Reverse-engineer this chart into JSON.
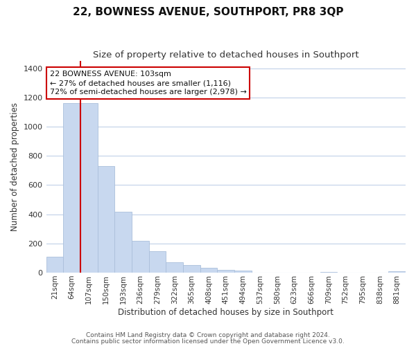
{
  "title": "22, BOWNESS AVENUE, SOUTHPORT, PR8 3QP",
  "subtitle": "Size of property relative to detached houses in Southport",
  "xlabel": "Distribution of detached houses by size in Southport",
  "ylabel": "Number of detached properties",
  "bar_labels": [
    "21sqm",
    "64sqm",
    "107sqm",
    "150sqm",
    "193sqm",
    "236sqm",
    "279sqm",
    "322sqm",
    "365sqm",
    "408sqm",
    "451sqm",
    "494sqm",
    "537sqm",
    "580sqm",
    "623sqm",
    "666sqm",
    "709sqm",
    "752sqm",
    "795sqm",
    "838sqm",
    "881sqm"
  ],
  "bar_values": [
    108,
    1160,
    1160,
    730,
    415,
    220,
    148,
    73,
    50,
    32,
    18,
    16,
    0,
    0,
    0,
    0,
    5,
    0,
    0,
    0,
    10
  ],
  "bar_color": "#c8d8ef",
  "bar_edge_color": "#aabfdb",
  "vline_index": 2,
  "vline_color": "#cc0000",
  "annotation_text": "22 BOWNESS AVENUE: 103sqm\n← 27% of detached houses are smaller (1,116)\n72% of semi-detached houses are larger (2,978) →",
  "annotation_box_facecolor": "#ffffff",
  "annotation_box_edgecolor": "#cc0000",
  "ylim": [
    0,
    1450
  ],
  "yticks": [
    0,
    200,
    400,
    600,
    800,
    1000,
    1200,
    1400
  ],
  "footer_line1": "Contains HM Land Registry data © Crown copyright and database right 2024.",
  "footer_line2": "Contains public sector information licensed under the Open Government Licence v3.0.",
  "bg_color": "#ffffff",
  "grid_color": "#c0d0e8",
  "title_fontsize": 11,
  "subtitle_fontsize": 9.5,
  "axis_label_fontsize": 8.5,
  "tick_fontsize": 7.5,
  "footer_fontsize": 6.5
}
